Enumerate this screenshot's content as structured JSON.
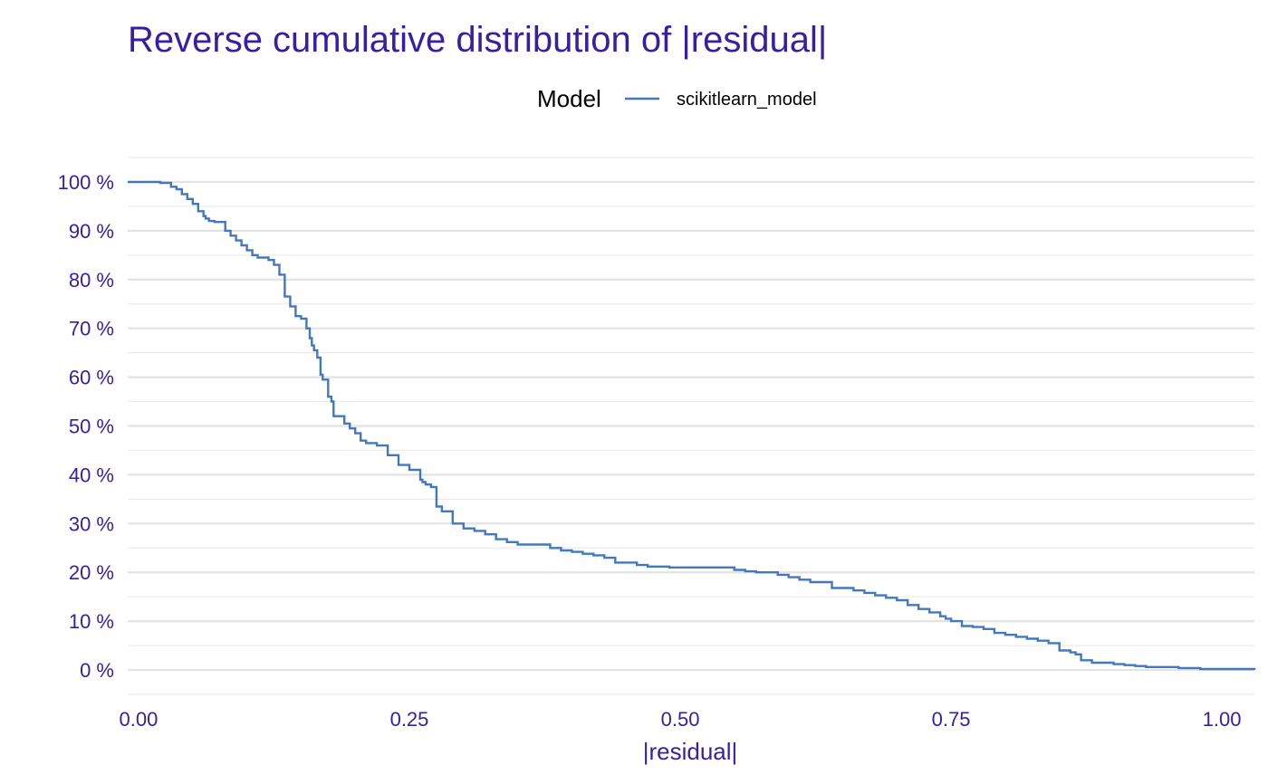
{
  "chart_data": {
    "type": "line",
    "step": true,
    "title": "Reverse cumulative distribution of |residual|",
    "xlabel": "|residual|",
    "ylabel": "",
    "xlim": [
      -0.01,
      1.03
    ],
    "ylim": [
      -0.05,
      1.05
    ],
    "x_ticks": [
      0,
      0.25,
      0.5,
      0.75,
      1.0
    ],
    "x_tick_labels": [
      "0.00",
      "0.25",
      "0.50",
      "0.75",
      "1.00"
    ],
    "y_ticks": [
      0,
      0.1,
      0.2,
      0.3,
      0.4,
      0.5,
      0.6,
      0.7,
      0.8,
      0.9,
      1.0
    ],
    "y_tick_labels": [
      "0 %",
      "10 %",
      "20 %",
      "30 %",
      "40 %",
      "50 %",
      "60 %",
      "70 %",
      "80 %",
      "90 %",
      "100 %"
    ],
    "grid": true,
    "legend": {
      "title": "Model",
      "position": "top"
    },
    "series": [
      {
        "name": "scikitlearn_model",
        "color": "#4378bf",
        "x": [
          -0.01,
          0.02,
          0.03,
          0.035,
          0.04,
          0.045,
          0.05,
          0.055,
          0.06,
          0.062,
          0.065,
          0.07,
          0.08,
          0.085,
          0.09,
          0.095,
          0.1,
          0.105,
          0.11,
          0.12,
          0.125,
          0.13,
          0.135,
          0.14,
          0.145,
          0.15,
          0.155,
          0.158,
          0.16,
          0.162,
          0.165,
          0.168,
          0.17,
          0.175,
          0.178,
          0.18,
          0.19,
          0.195,
          0.2,
          0.205,
          0.21,
          0.22,
          0.23,
          0.24,
          0.25,
          0.26,
          0.262,
          0.265,
          0.27,
          0.275,
          0.28,
          0.29,
          0.3,
          0.31,
          0.32,
          0.33,
          0.34,
          0.35,
          0.38,
          0.39,
          0.4,
          0.41,
          0.42,
          0.43,
          0.44,
          0.46,
          0.47,
          0.49,
          0.55,
          0.56,
          0.57,
          0.59,
          0.6,
          0.61,
          0.62,
          0.64,
          0.66,
          0.67,
          0.68,
          0.69,
          0.7,
          0.71,
          0.72,
          0.73,
          0.74,
          0.745,
          0.75,
          0.76,
          0.77,
          0.78,
          0.79,
          0.8,
          0.81,
          0.82,
          0.83,
          0.84,
          0.85,
          0.86,
          0.865,
          0.87,
          0.88,
          0.9,
          0.91,
          0.92,
          0.93,
          0.96,
          0.98,
          1.03
        ],
        "y": [
          1.0,
          0.998,
          0.99,
          0.985,
          0.975,
          0.965,
          0.955,
          0.94,
          0.93,
          0.925,
          0.92,
          0.918,
          0.9,
          0.89,
          0.88,
          0.87,
          0.86,
          0.85,
          0.845,
          0.84,
          0.83,
          0.81,
          0.765,
          0.745,
          0.725,
          0.72,
          0.7,
          0.68,
          0.665,
          0.655,
          0.64,
          0.605,
          0.595,
          0.56,
          0.55,
          0.52,
          0.505,
          0.495,
          0.485,
          0.47,
          0.465,
          0.46,
          0.44,
          0.42,
          0.41,
          0.39,
          0.385,
          0.38,
          0.375,
          0.335,
          0.325,
          0.3,
          0.29,
          0.285,
          0.278,
          0.268,
          0.262,
          0.257,
          0.25,
          0.245,
          0.242,
          0.238,
          0.235,
          0.23,
          0.22,
          0.215,
          0.212,
          0.21,
          0.205,
          0.202,
          0.2,
          0.195,
          0.19,
          0.185,
          0.18,
          0.168,
          0.163,
          0.158,
          0.153,
          0.148,
          0.143,
          0.133,
          0.125,
          0.118,
          0.11,
          0.105,
          0.1,
          0.09,
          0.088,
          0.084,
          0.076,
          0.072,
          0.068,
          0.064,
          0.06,
          0.055,
          0.04,
          0.036,
          0.032,
          0.02,
          0.015,
          0.012,
          0.01,
          0.008,
          0.006,
          0.004,
          0.002,
          0.0
        ]
      }
    ]
  }
}
